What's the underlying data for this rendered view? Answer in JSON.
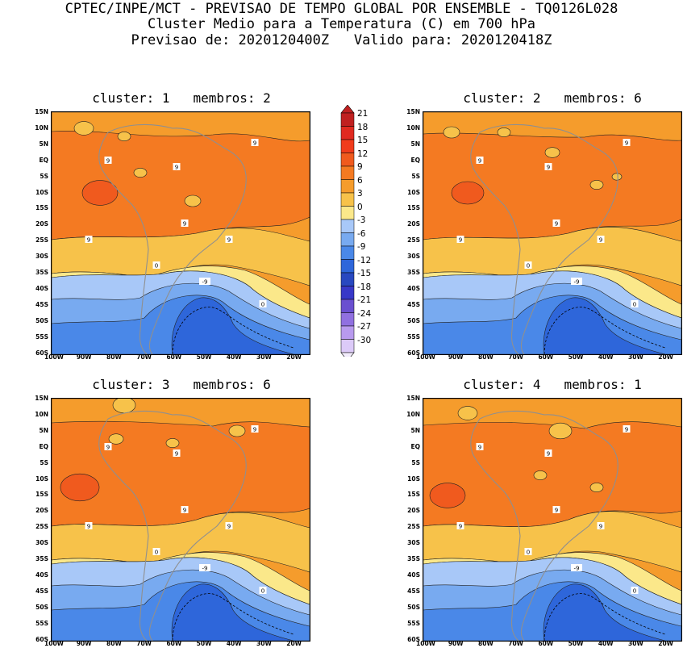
{
  "header": {
    "line1": "CPTEC/INPE/MCT - PREVISAO DE TEMPO GLOBAL POR ENSEMBLE - TQ0126L028",
    "line2": "Cluster Medio para a Temperatura (C) em 700 hPa",
    "line3": "Previsao de: 2020120400Z   Valido para: 2020120418Z"
  },
  "panels": [
    {
      "title": "cluster: 1   membros: 2"
    },
    {
      "title": "cluster: 2   membros: 6"
    },
    {
      "title": "cluster: 3   membros: 6"
    },
    {
      "title": "cluster: 4   membros: 1"
    }
  ],
  "lat_ticks": [
    "15N",
    "10N",
    "5N",
    "EQ",
    "5S",
    "10S",
    "15S",
    "20S",
    "25S",
    "30S",
    "35S",
    "40S",
    "45S",
    "50S",
    "55S",
    "60S"
  ],
  "lon_ticks": [
    "100W",
    "90W",
    "80W",
    "70W",
    "60W",
    "50W",
    "40W",
    "30W",
    "20W"
  ],
  "colorbar": {
    "levels": [
      "21",
      "18",
      "15",
      "12",
      "9",
      "6",
      "3",
      "0",
      "-3",
      "-6",
      "-9",
      "-12",
      "-15",
      "-18",
      "-21",
      "-24",
      "-27",
      "-30"
    ],
    "colors": [
      "#c02020",
      "#e02a20",
      "#f03c1c",
      "#f05a1e",
      "#f47a22",
      "#f59c2c",
      "#f7c24a",
      "#fbe88a",
      "#a8c8f8",
      "#78aaf0",
      "#4a88e8",
      "#2e66da",
      "#2848c0",
      "#3838c8",
      "#6a50d0",
      "#9070e0",
      "#b89aee",
      "#dccaf8"
    ]
  },
  "contour_labels": {
    "nine": "9",
    "zero": "0",
    "minus_nine": "-9"
  }
}
